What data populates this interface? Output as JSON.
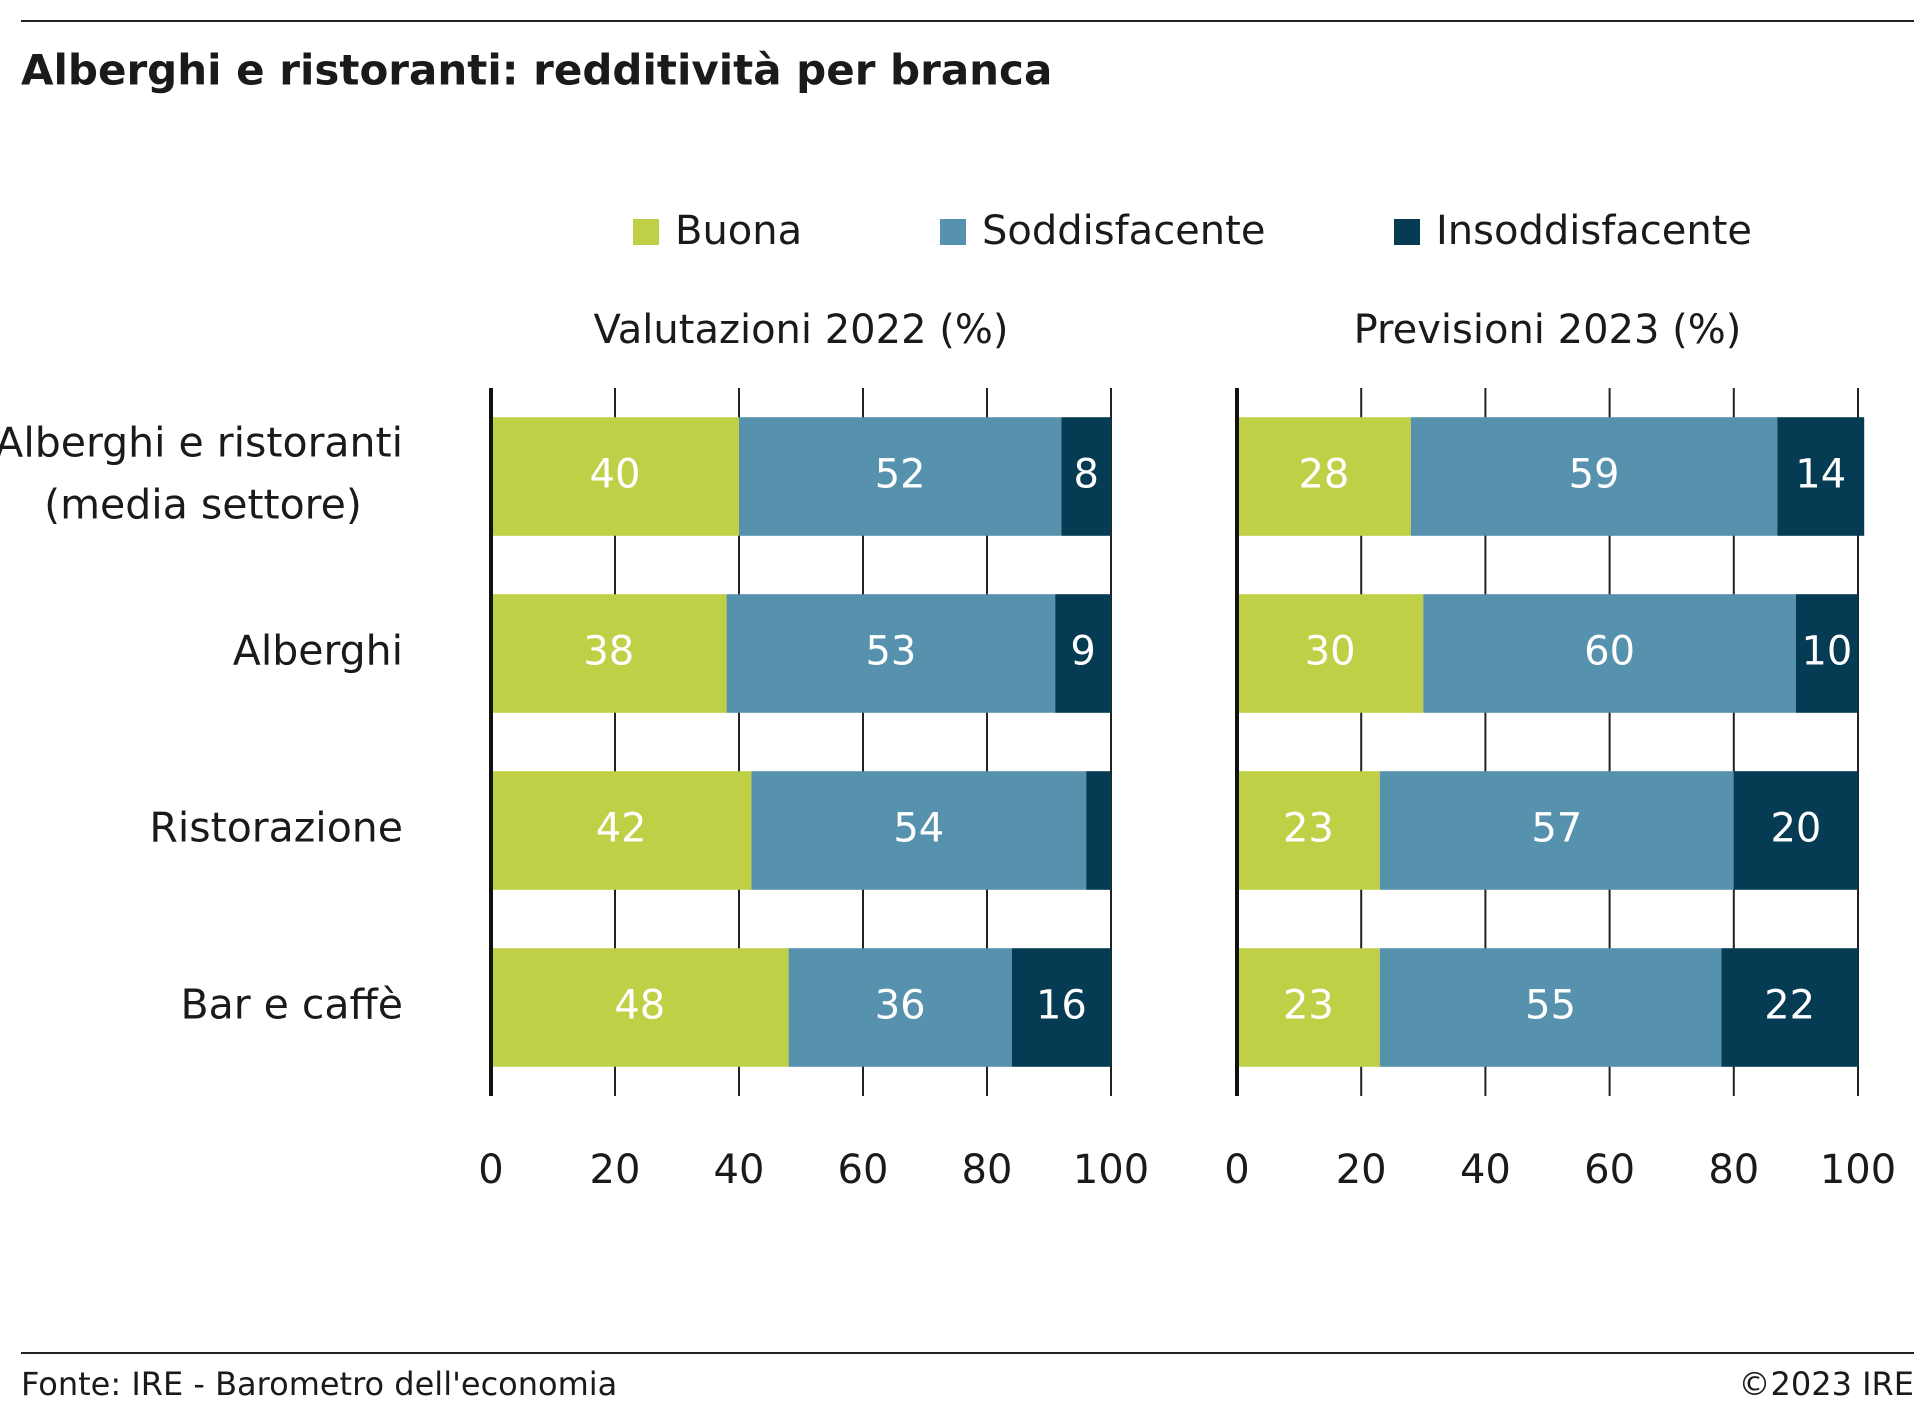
{
  "header": {
    "title": "Alberghi e ristoranti: redditività per branca"
  },
  "chart_data": [
    {
      "type": "bar",
      "orientation": "horizontal",
      "stacked": true,
      "title": "Valutazioni 2022 (%)",
      "categories": [
        "Alberghi e ristoranti\n(media settore)",
        "Alberghi",
        "Ristorazione",
        "Bar e caffè"
      ],
      "series": [
        {
          "name": "Buona",
          "color": "#bfd047",
          "values": [
            40,
            38,
            42,
            48
          ]
        },
        {
          "name": "Soddisfacente",
          "color": "#5692ad",
          "values": [
            52,
            53,
            54,
            36
          ]
        },
        {
          "name": "Insoddisfacente",
          "color": "#063b54",
          "values": [
            8,
            9,
            4,
            16
          ]
        }
      ],
      "xlim": [
        0,
        100
      ],
      "xticks": [
        0,
        20,
        40,
        60,
        80,
        100
      ],
      "grid": true
    },
    {
      "type": "bar",
      "orientation": "horizontal",
      "stacked": true,
      "title": "Previsioni 2023 (%)",
      "series": [
        {
          "color": "#bfd047",
          "values": [
            28,
            30,
            23,
            23
          ]
        },
        {
          "color": "#5692ad",
          "values": [
            59,
            60,
            57,
            55
          ]
        },
        {
          "color": "#063b54",
          "values": [
            14,
            10,
            20,
            22
          ]
        }
      ],
      "xlim": [
        0,
        100
      ],
      "xticks": [
        0,
        20,
        40,
        60,
        80,
        100
      ],
      "grid": true
    }
  ],
  "footer": {
    "source": "Fonte: IRE - Barometro dell'economia",
    "copyright": "©2023 IRE"
  }
}
